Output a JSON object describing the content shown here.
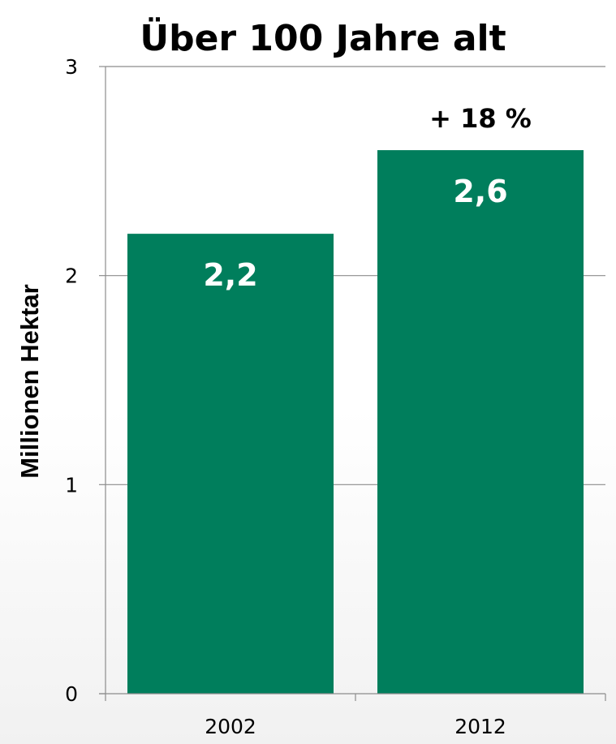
{
  "chart_data": {
    "type": "bar",
    "title": "Über 100 Jahre alt",
    "ylabel": "Millionen Hektar",
    "xlabel": "",
    "categories": [
      "2002",
      "2012"
    ],
    "values": [
      2.2,
      2.6
    ],
    "value_labels": [
      "2,2",
      "2,6"
    ],
    "ylim": [
      0,
      3
    ],
    "yticks": [
      0,
      1,
      2,
      3
    ],
    "ytick_labels": [
      "0",
      "1",
      "2",
      "3"
    ],
    "grid": true,
    "bar_color": "#007e5c",
    "annotations": [
      {
        "text": "+ 18 %",
        "category": "2012"
      }
    ]
  }
}
